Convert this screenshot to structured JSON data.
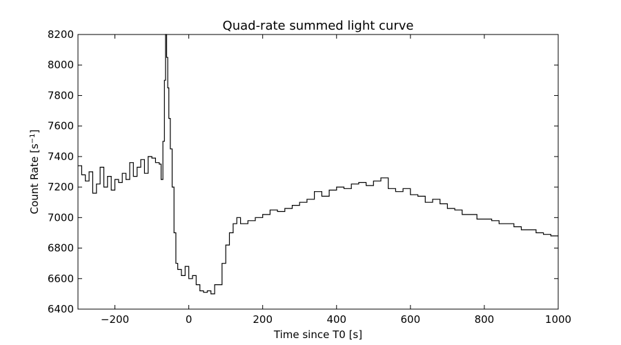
{
  "chart_data": {
    "type": "line",
    "title": "Quad-rate summed light curve",
    "xlabel": "Time since T0 [s]",
    "ylabel_main": "Count Rate [s",
    "ylabel_sup": "−1",
    "ylabel_end": "]",
    "xlim": [
      -300,
      1000
    ],
    "ylim": [
      6400,
      8200
    ],
    "xticks": [
      -200,
      0,
      200,
      400,
      600,
      800,
      1000
    ],
    "xtick_labels": [
      "−200",
      "0",
      "200",
      "400",
      "600",
      "800",
      "1000"
    ],
    "yticks": [
      6400,
      6600,
      6800,
      7000,
      7200,
      7400,
      7600,
      7800,
      8000,
      8200
    ],
    "ytick_labels": [
      "6400",
      "6600",
      "6800",
      "7000",
      "7200",
      "7400",
      "7600",
      "7800",
      "8000",
      "8200"
    ],
    "grid": false,
    "line_color": "#000000",
    "series": [
      {
        "x": [
          -300,
          -290,
          -280,
          -270,
          -260,
          -250,
          -240,
          -230,
          -220,
          -210,
          -200,
          -190,
          -180,
          -170,
          -160,
          -150,
          -140,
          -130,
          -120,
          -110,
          -100,
          -90,
          -80,
          -75,
          -70,
          -66,
          -63,
          -60,
          -57,
          -54,
          -50,
          -45,
          -40,
          -35,
          -30,
          -20,
          -10,
          0,
          10,
          20,
          30,
          40,
          50,
          60,
          70,
          80,
          90,
          100,
          110,
          120,
          130,
          140,
          160,
          180,
          200,
          220,
          240,
          260,
          280,
          300,
          320,
          340,
          360,
          380,
          400,
          420,
          440,
          460,
          480,
          500,
          520,
          540,
          560,
          580,
          600,
          620,
          640,
          660,
          680,
          700,
          720,
          740,
          760,
          780,
          800,
          820,
          840,
          860,
          880,
          900,
          920,
          940,
          960,
          980,
          1000
        ],
        "y": [
          7340,
          7280,
          7240,
          7300,
          7160,
          7220,
          7330,
          7200,
          7270,
          7180,
          7250,
          7230,
          7290,
          7250,
          7360,
          7270,
          7330,
          7380,
          7290,
          7400,
          7390,
          7360,
          7350,
          7250,
          7500,
          7900,
          8200,
          8050,
          7850,
          7650,
          7450,
          7200,
          6900,
          6700,
          6660,
          6620,
          6680,
          6600,
          6620,
          6560,
          6520,
          6510,
          6520,
          6500,
          6560,
          6560,
          6700,
          6820,
          6900,
          6960,
          7000,
          6960,
          6980,
          7000,
          7020,
          7050,
          7040,
          7060,
          7080,
          7100,
          7120,
          7170,
          7140,
          7180,
          7200,
          7190,
          7220,
          7230,
          7210,
          7240,
          7260,
          7190,
          7170,
          7190,
          7150,
          7140,
          7100,
          7120,
          7090,
          7060,
          7050,
          7020,
          7020,
          6990,
          6990,
          6980,
          6960,
          6960,
          6940,
          6920,
          6920,
          6900,
          6890,
          6880,
          6880
        ]
      }
    ]
  }
}
